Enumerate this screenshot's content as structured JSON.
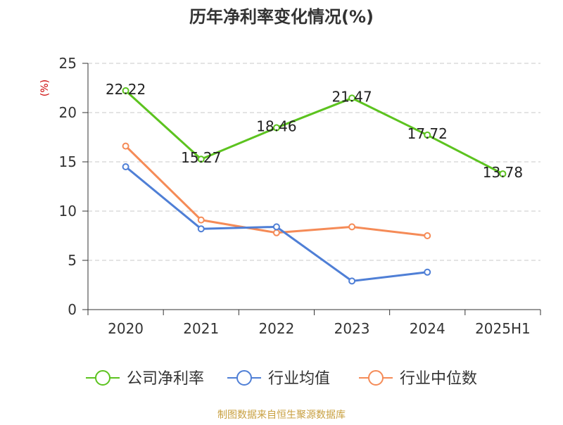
{
  "chart_data": {
    "type": "line",
    "title": "历年净利率变化情况(%)",
    "ylabel": "(%)",
    "xlabel": "",
    "categories": [
      "2020",
      "2021",
      "2022",
      "2023",
      "2024",
      "2025H1"
    ],
    "ylim": [
      0,
      25
    ],
    "yticks": [
      "0",
      "5",
      "10",
      "15",
      "20",
      "25"
    ],
    "grid": true,
    "legend_position": "bottom",
    "series": [
      {
        "name": "公司净利率",
        "color": "#5cc31f",
        "values": [
          22.22,
          15.27,
          18.46,
          21.47,
          17.72,
          13.78
        ],
        "labels": [
          "22.22",
          "15.27",
          "18.46",
          "21.47",
          "17.72",
          "13.78"
        ]
      },
      {
        "name": "行业均值",
        "color": "#4f7fd6",
        "values": [
          14.5,
          8.2,
          8.4,
          2.9,
          3.8,
          null
        ]
      },
      {
        "name": "行业中位数",
        "color": "#f58b57",
        "values": [
          16.6,
          9.1,
          7.8,
          8.4,
          7.5,
          null
        ]
      }
    ],
    "source": "制图数据来自恒生聚源数据库"
  }
}
